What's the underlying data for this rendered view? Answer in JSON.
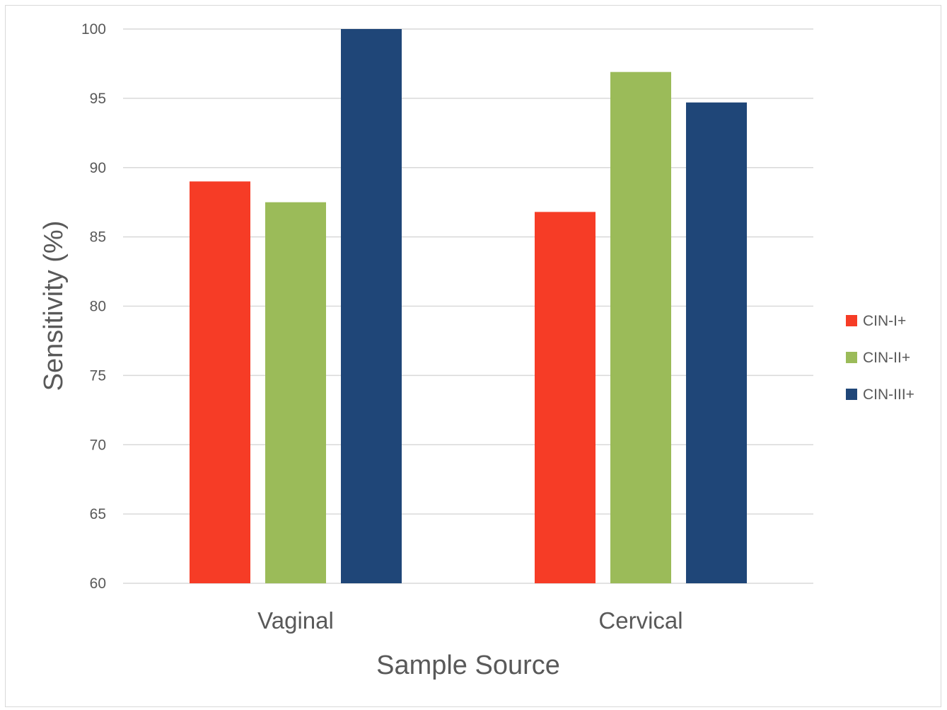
{
  "chart_data": {
    "type": "bar",
    "title": "",
    "xlabel": "Sample Source",
    "ylabel": "Sensitivity (%)",
    "categories": [
      "Vaginal",
      "Cervical"
    ],
    "series": [
      {
        "name": "CIN-I+",
        "color": "#f63c26",
        "values": [
          89.0,
          86.8
        ]
      },
      {
        "name": "CIN-II+",
        "color": "#9bbb59",
        "values": [
          87.5,
          96.9
        ]
      },
      {
        "name": "CIN-III+",
        "color": "#1f4678",
        "values": [
          100.0,
          94.7
        ]
      }
    ],
    "ylim": [
      60,
      100
    ],
    "yticks": [
      "60",
      "65",
      "70",
      "75",
      "80",
      "85",
      "90",
      "95",
      "100"
    ],
    "grid": true,
    "legend_position": "right",
    "gridline_color": "#d9d9d9"
  }
}
